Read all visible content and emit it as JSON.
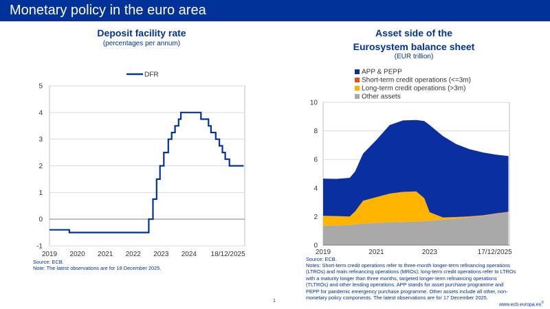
{
  "header": {
    "title": "Monetary policy in the euro area"
  },
  "colors": {
    "banner": "#003299",
    "dfr_line": "#003299",
    "app_pepp": "#0a2fa0",
    "short_term": "#e8501c",
    "long_term": "#ffb400",
    "other": "#a9a9a9"
  },
  "left_chart": {
    "title": "Deposit facility rate",
    "subtitle": "(percentages per annum)",
    "source": "Source: ECB.",
    "note": "Note: The latest observations are for 18 December 2025."
  },
  "right_chart": {
    "title_line1": "Asset side of the",
    "title_line2": "Eurosystem balance sheet",
    "subtitle": "(EUR trillion)",
    "source": "Source: ECB.",
    "notes": [
      "Notes: Short-term credit operations refer to three-month longer-term refinancing operations",
      "(LTROs) and main refinancing operations (MROs); long-term credit operations refer to LTROs",
      "with a maturity longer than three months, targeted longer-term refinancing operations",
      "(TLTROs) and other lending operations. APP stands for asset purchase programme and",
      "PEPP for pandemic emergency purchase programme. Other assets include all other, non-",
      "monetary policy components. The latest observations are for 17 December 2025."
    ]
  },
  "page_number": "1",
  "footer_url": "www.ecb.europa.eu",
  "chart_data": [
    {
      "type": "line",
      "title": "Deposit facility rate",
      "subtitle": "(percentages per annum)",
      "xlabel": "",
      "ylabel": "",
      "xlim": [
        2019.0,
        2026.0
      ],
      "ylim": [
        -1,
        5
      ],
      "yticks": [
        "-1",
        "0",
        "1",
        "2",
        "3",
        "4",
        "5"
      ],
      "xticks": [
        {
          "label": "2019",
          "at": 2019.0
        },
        {
          "label": "2020",
          "at": 2020.0
        },
        {
          "label": "2021",
          "at": 2021.0
        },
        {
          "label": "2022",
          "at": 2022.0
        },
        {
          "label": "2023",
          "at": 2023.0
        },
        {
          "label": "2024",
          "at": 2024.0
        },
        {
          "label": "18/12/2025",
          "at": 2025.4
        }
      ],
      "grid": true,
      "legend": "top-center",
      "series": [
        {
          "name": "DFR",
          "step": true,
          "points": [
            [
              2019.0,
              -0.4
            ],
            [
              2019.71,
              -0.5
            ],
            [
              2022.56,
              0.0
            ],
            [
              2022.71,
              0.75
            ],
            [
              2022.84,
              1.5
            ],
            [
              2022.96,
              2.0
            ],
            [
              2023.1,
              2.5
            ],
            [
              2023.26,
              3.0
            ],
            [
              2023.38,
              3.25
            ],
            [
              2023.5,
              3.5
            ],
            [
              2023.63,
              3.75
            ],
            [
              2023.71,
              4.0
            ],
            [
              2024.43,
              3.75
            ],
            [
              2024.7,
              3.5
            ],
            [
              2024.79,
              3.25
            ],
            [
              2024.96,
              3.0
            ],
            [
              2025.09,
              2.75
            ],
            [
              2025.2,
              2.5
            ],
            [
              2025.3,
              2.25
            ],
            [
              2025.45,
              2.0
            ],
            [
              2025.96,
              2.0
            ]
          ]
        }
      ]
    },
    {
      "type": "area",
      "stacked": true,
      "title": "Asset side of the Eurosystem balance sheet",
      "subtitle": "(EUR trillion)",
      "xlabel": "",
      "ylabel": "",
      "xlim": [
        2019.0,
        2026.0
      ],
      "ylim": [
        0,
        10
      ],
      "yticks": [
        "0",
        "2",
        "4",
        "6",
        "8",
        "10"
      ],
      "xticks": [
        {
          "label": "2019",
          "at": 2019.0
        },
        {
          "label": "2021",
          "at": 2021.0
        },
        {
          "label": "2023",
          "at": 2023.0
        },
        {
          "label": "17/12/2025",
          "at": 2025.45
        }
      ],
      "grid": true,
      "legend": "top-left",
      "x": [
        2019.0,
        2019.5,
        2020.0,
        2020.2,
        2020.5,
        2021.0,
        2021.5,
        2022.0,
        2022.5,
        2022.8,
        2023.0,
        2023.5,
        2024.0,
        2024.5,
        2025.0,
        2025.5,
        2025.96
      ],
      "series": [
        {
          "name": "Other assets",
          "values": [
            1.35,
            1.38,
            1.4,
            1.45,
            1.5,
            1.55,
            1.6,
            1.62,
            1.65,
            1.68,
            1.7,
            1.78,
            1.85,
            1.95,
            2.05,
            2.2,
            2.3
          ]
        },
        {
          "name": "Long-term credit operations (>3m)",
          "values": [
            0.7,
            0.65,
            0.6,
            0.9,
            1.6,
            1.8,
            2.0,
            2.1,
            2.1,
            1.6,
            0.6,
            0.15,
            0.1,
            0.05,
            0.02,
            0.01,
            0.01
          ]
        },
        {
          "name": "Short-term credit operations (<=3m)",
          "values": [
            0.01,
            0.01,
            0.01,
            0.01,
            0.01,
            0.01,
            0.01,
            0.01,
            0.01,
            0.01,
            0.01,
            0.01,
            0.02,
            0.02,
            0.02,
            0.02,
            0.03
          ]
        },
        {
          "name": "APP & PEPP",
          "values": [
            2.6,
            2.6,
            2.7,
            2.8,
            3.3,
            4.0,
            4.8,
            5.0,
            5.0,
            5.4,
            6.1,
            5.7,
            5.1,
            4.7,
            4.4,
            4.1,
            3.9
          ]
        }
      ]
    }
  ]
}
